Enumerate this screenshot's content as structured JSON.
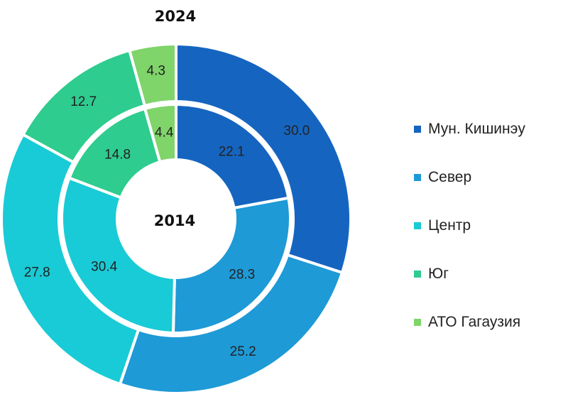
{
  "chart_data": {
    "type": "pie",
    "subtype": "nested-donut",
    "categories": [
      "Мун. Кишинэу",
      "Север",
      "Центр",
      "Юг",
      "АТО Гагаузия"
    ],
    "colors": [
      "#1565c0",
      "#1e9ad6",
      "#19cbd6",
      "#2ecc8f",
      "#7fd46a"
    ],
    "series": [
      {
        "name": "2024",
        "ring": "outer",
        "values": [
          30.0,
          25.2,
          27.8,
          12.7,
          4.3
        ],
        "labels": [
          "30.0",
          "25.2",
          "27.8",
          "12.7",
          "4.3"
        ]
      },
      {
        "name": "2014",
        "ring": "inner",
        "values": [
          22.1,
          28.3,
          30.4,
          14.8,
          4.4
        ],
        "labels": [
          "22.1",
          "28.3",
          "30.4",
          "14.8",
          "4.4"
        ]
      }
    ],
    "legend_position": "right"
  }
}
